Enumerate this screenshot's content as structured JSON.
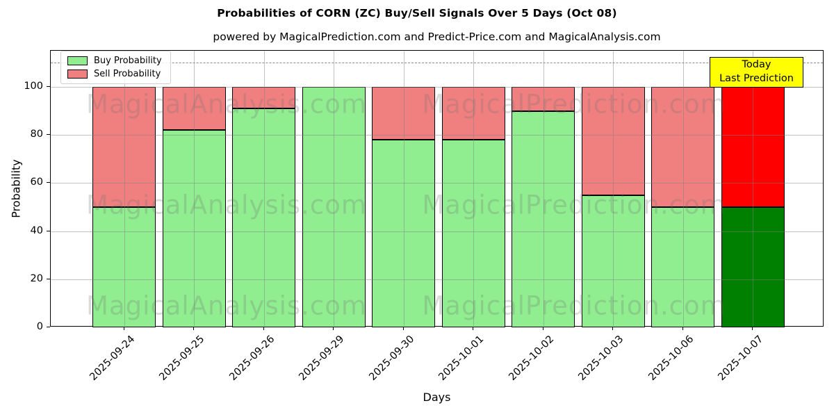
{
  "title": "Probabilities of CORN (ZC) Buy/Sell Signals Over 5 Days (Oct 08)",
  "subtitle": "powered by MagicalPrediction.com and Predict-Price.com and MagicalAnalysis.com",
  "legend": {
    "items": [
      {
        "label": "Buy Probability",
        "color": "#90ee90"
      },
      {
        "label": "Sell Probability",
        "color": "#f08080"
      }
    ]
  },
  "annotation_box": {
    "line1": "Today",
    "line2": "Last Prediction",
    "bg_color": "#ffff00"
  },
  "watermarks": {
    "left": "MagicalAnalysis.com",
    "right": "MagicalPrediction.com"
  },
  "chart_data": {
    "type": "bar",
    "stacked": true,
    "title": "Probabilities of CORN (ZC) Buy/Sell Signals Over 5 Days (Oct 08)",
    "xlabel": "Days",
    "ylabel": "Probability",
    "categories": [
      "2025-09-24",
      "2025-09-25",
      "2025-09-26",
      "2025-09-29",
      "2025-09-30",
      "2025-10-01",
      "2025-10-02",
      "2025-10-03",
      "2025-10-06",
      "2025-10-07"
    ],
    "series": [
      {
        "name": "Buy Probability",
        "color": "#90ee90",
        "today_color": "#008000",
        "values": [
          50,
          82,
          91,
          100,
          78,
          78,
          90,
          55,
          50,
          50
        ]
      },
      {
        "name": "Sell Probability",
        "color": "#f08080",
        "today_color": "#ff0000",
        "values": [
          50,
          18,
          9,
          0,
          22,
          22,
          10,
          45,
          50,
          50
        ]
      }
    ],
    "ylim": [
      0,
      115
    ],
    "yticks": [
      0,
      20,
      40,
      60,
      80,
      100
    ],
    "dashed_line_y": 110,
    "grid": true,
    "legend_position": "upper left",
    "bar_edge_color": "#000000"
  }
}
